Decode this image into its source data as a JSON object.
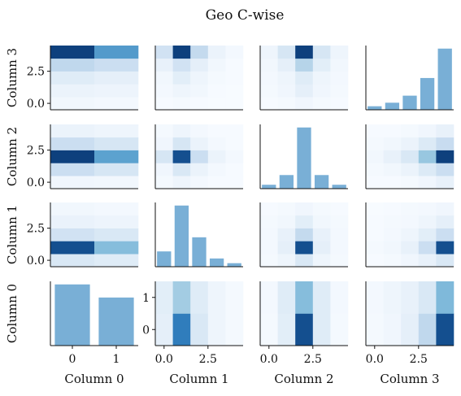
{
  "title": "Geo C-wise",
  "colors": {
    "bar": "#79afd6",
    "axis": "#111111",
    "cmap": [
      "#f7fbff",
      "#deebf7",
      "#c6dbef",
      "#9ecae1",
      "#6baed6",
      "#2171b5",
      "#08306b"
    ]
  },
  "chart_data": {
    "type": "heatmap",
    "title": "Geo C-wise",
    "variables": [
      "Column 0",
      "Column 1",
      "Column 2",
      "Column 3"
    ],
    "levels": [
      2,
      5,
      5,
      5
    ],
    "tick_labels": {
      "Column 0": [
        "0",
        "1"
      ],
      "Column 1": [
        "0.0",
        "2.5"
      ],
      "Column 2": [
        "0.0",
        "2.5"
      ],
      "Column 3": [
        "0.0",
        "2.5"
      ],
      "Column 0 y": [
        "0",
        "1"
      ],
      "Column 1 y": [
        "0.0",
        "2.5"
      ],
      "Column 2 y": [
        "0.0",
        "2.5"
      ],
      "Column 3 y": [
        "0.0",
        "2.5"
      ]
    },
    "marginals": {
      "Column 0": [
        0.56,
        0.44
      ],
      "Column 1": [
        0.13,
        0.52,
        0.25,
        0.07,
        0.03
      ],
      "Column 2": [
        0.04,
        0.14,
        0.63,
        0.14,
        0.04
      ],
      "Column 3": [
        0.03,
        0.06,
        0.12,
        0.27,
        0.52
      ]
    },
    "pairs": [
      {
        "x": "Column 1",
        "y": "Column 0",
        "values": [
          [
            0.12,
            0.8,
            0.2,
            0.06,
            0.02
          ],
          [
            0.14,
            0.48,
            0.16,
            0.06,
            0.02
          ]
        ]
      },
      {
        "x": "Column 2",
        "y": "Column 0",
        "values": [
          [
            0.02,
            0.14,
            0.92,
            0.16,
            0.02
          ],
          [
            0.03,
            0.16,
            0.58,
            0.16,
            0.03
          ]
        ]
      },
      {
        "x": "Column 3",
        "y": "Column 0",
        "values": [
          [
            0.02,
            0.05,
            0.12,
            0.36,
            0.92
          ],
          [
            0.03,
            0.06,
            0.1,
            0.2,
            0.6
          ]
        ]
      },
      {
        "x": "Column 0",
        "y": "Column 1",
        "values": [
          [
            0.2,
            0.16
          ],
          [
            0.92,
            0.58
          ],
          [
            0.26,
            0.2
          ],
          [
            0.09,
            0.07
          ],
          [
            0.04,
            0.03
          ]
        ]
      },
      {
        "x": "Column 2",
        "y": "Column 1",
        "values": [
          [
            0.02,
            0.06,
            0.2,
            0.06,
            0.02
          ],
          [
            0.03,
            0.12,
            0.92,
            0.12,
            0.03
          ],
          [
            0.03,
            0.1,
            0.34,
            0.1,
            0.03
          ],
          [
            0.02,
            0.04,
            0.14,
            0.04,
            0.02
          ],
          [
            0.01,
            0.02,
            0.05,
            0.02,
            0.01
          ]
        ]
      },
      {
        "x": "Column 3",
        "y": "Column 1",
        "values": [
          [
            0.01,
            0.02,
            0.05,
            0.1,
            0.2
          ],
          [
            0.02,
            0.04,
            0.1,
            0.3,
            0.92
          ],
          [
            0.01,
            0.03,
            0.06,
            0.14,
            0.3
          ],
          [
            0.01,
            0.02,
            0.03,
            0.06,
            0.12
          ],
          [
            0.0,
            0.01,
            0.02,
            0.03,
            0.05
          ]
        ]
      },
      {
        "x": "Column 0",
        "y": "Column 2",
        "values": [
          [
            0.05,
            0.04
          ],
          [
            0.3,
            0.22
          ],
          [
            0.96,
            0.7
          ],
          [
            0.3,
            0.22
          ],
          [
            0.08,
            0.06
          ]
        ]
      },
      {
        "x": "Column 1",
        "y": "Column 2",
        "values": [
          [
            0.02,
            0.06,
            0.03,
            0.01,
            0.01
          ],
          [
            0.05,
            0.2,
            0.08,
            0.03,
            0.01
          ],
          [
            0.22,
            0.92,
            0.3,
            0.08,
            0.03
          ],
          [
            0.05,
            0.22,
            0.08,
            0.03,
            0.01
          ],
          [
            0.02,
            0.06,
            0.03,
            0.01,
            0.01
          ]
        ]
      },
      {
        "x": "Column 3",
        "y": "Column 2",
        "values": [
          [
            0.01,
            0.01,
            0.02,
            0.05,
            0.1
          ],
          [
            0.02,
            0.04,
            0.08,
            0.18,
            0.3
          ],
          [
            0.04,
            0.1,
            0.2,
            0.52,
            0.96
          ],
          [
            0.02,
            0.04,
            0.08,
            0.18,
            0.32
          ],
          [
            0.01,
            0.01,
            0.02,
            0.05,
            0.1
          ]
        ]
      },
      {
        "x": "Column 0",
        "y": "Column 3",
        "values": [
          [
            0.04,
            0.03
          ],
          [
            0.08,
            0.07
          ],
          [
            0.16,
            0.12
          ],
          [
            0.36,
            0.3
          ],
          [
            0.96,
            0.72
          ]
        ]
      },
      {
        "x": "Column 1",
        "y": "Column 3",
        "values": [
          [
            0.01,
            0.02,
            0.01,
            0.0,
            0.0
          ],
          [
            0.03,
            0.06,
            0.04,
            0.01,
            0.0
          ],
          [
            0.04,
            0.14,
            0.06,
            0.02,
            0.01
          ],
          [
            0.1,
            0.26,
            0.12,
            0.04,
            0.01
          ],
          [
            0.26,
            0.96,
            0.34,
            0.08,
            0.03
          ]
        ]
      },
      {
        "x": "Column 2",
        "y": "Column 3",
        "values": [
          [
            0.01,
            0.02,
            0.05,
            0.02,
            0.01
          ],
          [
            0.02,
            0.05,
            0.12,
            0.05,
            0.02
          ],
          [
            0.03,
            0.06,
            0.16,
            0.06,
            0.03
          ],
          [
            0.04,
            0.12,
            0.4,
            0.14,
            0.04
          ],
          [
            0.06,
            0.22,
            0.96,
            0.22,
            0.06
          ]
        ]
      }
    ]
  }
}
